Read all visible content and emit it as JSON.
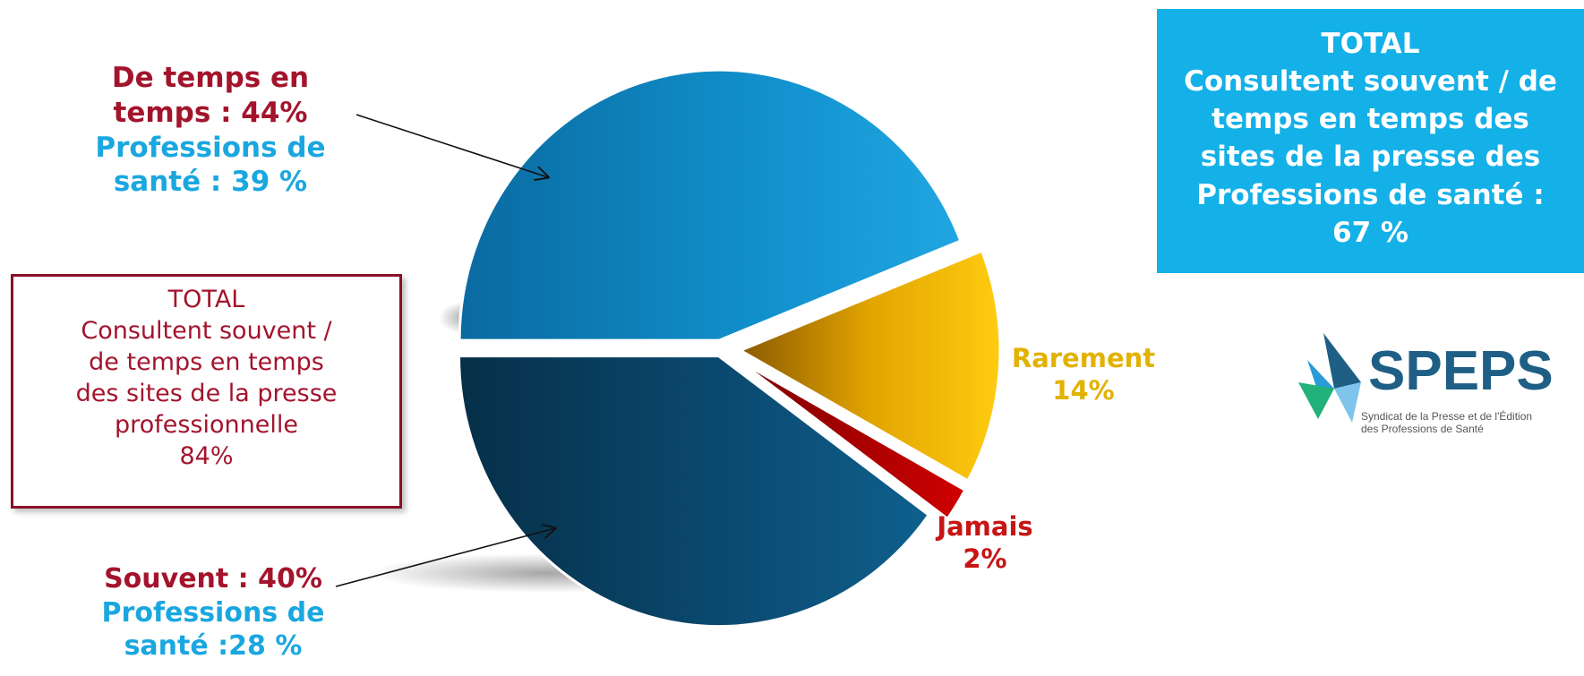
{
  "chart_data": {
    "type": "pie",
    "slices": [
      {
        "label": "De temps en temps",
        "value": 44,
        "color": "#0f87c2"
      },
      {
        "label": "Rarement",
        "value": 14,
        "color": "#f0b400"
      },
      {
        "label": "Jamais",
        "value": 2,
        "color": "#c00000"
      },
      {
        "label": "Souvent",
        "value": 40,
        "color": "#0b4a70"
      }
    ]
  },
  "labels": {
    "de_temps": {
      "line1": "De temps en",
      "line2": "temps : 44%",
      "line3": "Professions de",
      "line4": "santé : 39 %"
    },
    "souvent": {
      "line1": "Souvent : 40%",
      "line2": "Professions de",
      "line3": "santé :28 %"
    },
    "rarement": {
      "line1": "Rarement",
      "line2": "14%"
    },
    "jamais": {
      "line1": "Jamais",
      "line2": "2%"
    }
  },
  "box_left": {
    "line1": "TOTAL",
    "line2": "Consultent souvent /",
    "line3": "de temps en temps",
    "line4": "des sites de la presse",
    "line5": "professionnelle",
    "line6": "84%"
  },
  "box_right": {
    "line1": "TOTAL",
    "line2": "Consultent souvent / de",
    "line3": "temps en temps des",
    "line4": "sites de la presse des",
    "line5": "Professions de santé :",
    "line6": "67 %"
  },
  "logo": {
    "name": "SPEPS",
    "subtitle_line1": "Syndicat de la Presse et de l'Édition",
    "subtitle_line2": "des Professions de Santé"
  }
}
